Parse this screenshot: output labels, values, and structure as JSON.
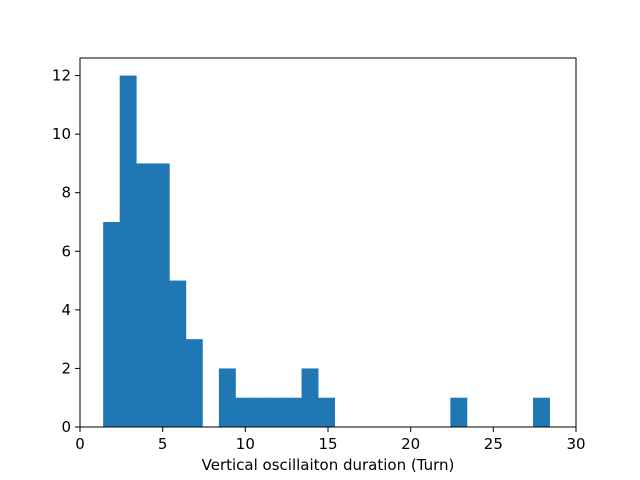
{
  "chart_data": {
    "type": "bar",
    "title": "",
    "xlabel": "Vertical oscillaiton duration (Turn)",
    "ylabel": "",
    "xlim": [
      0,
      30
    ],
    "ylim": [
      0,
      12.6
    ],
    "grid": false,
    "bar_color": "#1f77b4",
    "x_ticks": [
      0,
      5,
      10,
      15,
      20,
      25,
      30
    ],
    "y_ticks": [
      0,
      2,
      4,
      6,
      8,
      10,
      12
    ],
    "bins": [
      {
        "x0": 1.4,
        "x1": 2.4,
        "count": 7
      },
      {
        "x0": 2.4,
        "x1": 3.4,
        "count": 12
      },
      {
        "x0": 3.4,
        "x1": 4.4,
        "count": 9
      },
      {
        "x0": 4.4,
        "x1": 5.4,
        "count": 9
      },
      {
        "x0": 5.4,
        "x1": 6.4,
        "count": 5
      },
      {
        "x0": 6.4,
        "x1": 7.4,
        "count": 3
      },
      {
        "x0": 8.4,
        "x1": 9.4,
        "count": 2
      },
      {
        "x0": 9.4,
        "x1": 10.4,
        "count": 1
      },
      {
        "x0": 10.4,
        "x1": 11.4,
        "count": 1
      },
      {
        "x0": 11.4,
        "x1": 12.4,
        "count": 1
      },
      {
        "x0": 12.4,
        "x1": 13.4,
        "count": 1
      },
      {
        "x0": 13.4,
        "x1": 14.4,
        "count": 2
      },
      {
        "x0": 14.4,
        "x1": 15.4,
        "count": 1
      },
      {
        "x0": 22.4,
        "x1": 23.4,
        "count": 1
      },
      {
        "x0": 27.4,
        "x1": 28.4,
        "count": 1
      }
    ]
  }
}
